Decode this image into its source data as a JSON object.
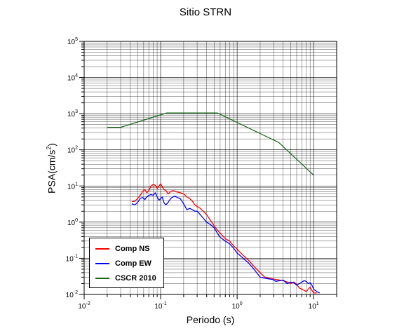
{
  "chart_data": {
    "type": "line",
    "title": "Sitio STRN",
    "xlabel": "Periodo (s)",
    "ylabel_base": "PSA(cm/s",
    "ylabel_exp": "2",
    "ylabel_close": ")",
    "xscale": "log",
    "yscale": "log",
    "xlim": [
      0.01,
      20
    ],
    "ylim": [
      0.01,
      100000
    ],
    "grid": true,
    "legend_position": "bottom-left",
    "x_ticks": [
      {
        "value": 0.01,
        "base": "10",
        "exp": "-2"
      },
      {
        "value": 0.1,
        "base": "10",
        "exp": "-1"
      },
      {
        "value": 1,
        "base": "10",
        "exp": "0"
      },
      {
        "value": 10,
        "base": "10",
        "exp": "1"
      }
    ],
    "y_ticks": [
      {
        "value": 0.01,
        "base": "10",
        "exp": "-2"
      },
      {
        "value": 0.1,
        "base": "10",
        "exp": "-1"
      },
      {
        "value": 1,
        "base": "10",
        "exp": "0"
      },
      {
        "value": 10,
        "base": "10",
        "exp": "1"
      },
      {
        "value": 100,
        "base": "10",
        "exp": "2"
      },
      {
        "value": 1000,
        "base": "10",
        "exp": "3"
      },
      {
        "value": 10000,
        "base": "10",
        "exp": "4"
      },
      {
        "value": 100000,
        "base": "10",
        "exp": "5"
      }
    ],
    "series": [
      {
        "name": "Comp NS",
        "color": "#ff0000",
        "x": [
          0.042,
          0.046,
          0.05,
          0.054,
          0.058,
          0.062,
          0.066,
          0.07,
          0.075,
          0.08,
          0.085,
          0.09,
          0.095,
          0.1,
          0.105,
          0.11,
          0.117,
          0.125,
          0.135,
          0.145,
          0.155,
          0.165,
          0.18,
          0.2,
          0.22,
          0.24,
          0.26,
          0.28,
          0.3,
          0.33,
          0.36,
          0.4,
          0.45,
          0.5,
          0.55,
          0.6,
          0.7,
          0.8,
          0.9,
          1.0,
          1.2,
          1.4,
          1.6,
          1.8,
          2.0,
          2.3,
          2.6,
          2.9,
          3.2,
          3.6,
          4.0,
          4.5,
          5.0,
          5.5,
          6.0,
          6.5,
          7.0,
          7.5,
          8.0,
          8.5,
          9.0,
          9.5,
          10.0,
          11.0
        ],
        "y": [
          3.7,
          3.8,
          4.5,
          5.5,
          7.0,
          8.0,
          6.5,
          7.5,
          10.0,
          11.0,
          10.5,
          8.5,
          10.0,
          11.5,
          9.5,
          8.0,
          7.5,
          6.0,
          7.0,
          7.5,
          7.0,
          6.8,
          6.5,
          6.0,
          5.0,
          4.5,
          3.8,
          3.0,
          2.7,
          2.4,
          2.0,
          1.6,
          1.1,
          0.8,
          0.6,
          0.5,
          0.35,
          0.3,
          0.22,
          0.18,
          0.12,
          0.09,
          0.065,
          0.05,
          0.04,
          0.03,
          0.028,
          0.027,
          0.026,
          0.025,
          0.024,
          0.022,
          0.02,
          0.022,
          0.019,
          0.015,
          0.014,
          0.013,
          0.012,
          0.014,
          0.016,
          0.013,
          0.011,
          0.011
        ]
      },
      {
        "name": "Comp EW",
        "color": "#0000ff",
        "x": [
          0.042,
          0.046,
          0.05,
          0.054,
          0.058,
          0.062,
          0.066,
          0.07,
          0.075,
          0.08,
          0.085,
          0.09,
          0.095,
          0.1,
          0.105,
          0.11,
          0.117,
          0.125,
          0.135,
          0.145,
          0.155,
          0.165,
          0.18,
          0.2,
          0.22,
          0.24,
          0.26,
          0.28,
          0.3,
          0.33,
          0.36,
          0.4,
          0.45,
          0.5,
          0.55,
          0.6,
          0.7,
          0.8,
          0.9,
          1.0,
          1.2,
          1.4,
          1.6,
          1.8,
          2.0,
          2.3,
          2.6,
          2.9,
          3.2,
          3.6,
          4.0,
          4.5,
          5.0,
          5.5,
          6.0,
          6.5,
          7.0,
          7.5,
          8.0,
          8.5,
          9.0,
          9.5,
          10.0,
          11.0,
          12.0
        ],
        "y": [
          3.2,
          3.0,
          3.5,
          4.5,
          4.8,
          4.2,
          5.0,
          5.5,
          5.8,
          5.5,
          6.5,
          5.0,
          4.0,
          4.5,
          5.0,
          3.5,
          3.0,
          3.5,
          4.5,
          5.0,
          5.2,
          4.8,
          4.5,
          3.2,
          2.2,
          2.4,
          2.2,
          2.0,
          2.0,
          1.6,
          1.3,
          1.0,
          0.85,
          0.7,
          0.5,
          0.38,
          0.3,
          0.25,
          0.19,
          0.14,
          0.1,
          0.075,
          0.055,
          0.04,
          0.03,
          0.028,
          0.027,
          0.026,
          0.023,
          0.024,
          0.025,
          0.02,
          0.022,
          0.021,
          0.018,
          0.02,
          0.022,
          0.024,
          0.023,
          0.02,
          0.021,
          0.018,
          0.014,
          0.012,
          0.011
        ]
      },
      {
        "name": "CSCR 2010",
        "color": "#1a6a1a",
        "x": [
          0.02,
          0.03,
          0.12,
          0.55,
          3.5,
          10.0
        ],
        "y": [
          420,
          420,
          1050,
          1050,
          160,
          20
        ]
      }
    ]
  }
}
